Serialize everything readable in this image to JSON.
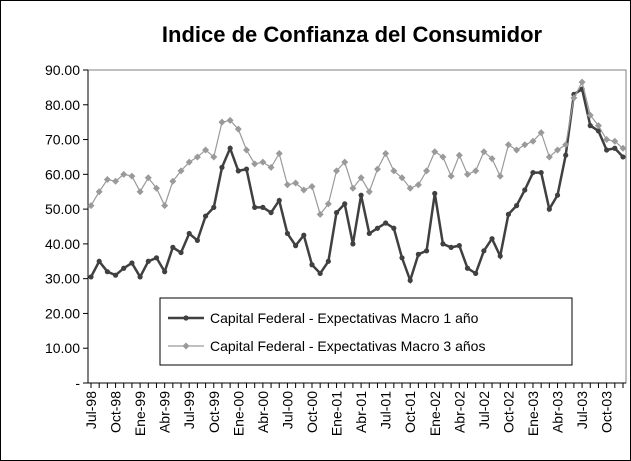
{
  "chart_data": {
    "type": "line",
    "title": "Indice de Confianza del Consumidor",
    "categories": [
      "Jul-98",
      null,
      null,
      "Oct-98",
      null,
      null,
      "Ene-99",
      null,
      null,
      "Abr-99",
      null,
      null,
      "Jul-99",
      null,
      null,
      "Oct-99",
      null,
      null,
      "Ene-00",
      null,
      null,
      "Abr-00",
      null,
      null,
      "Jul-00",
      null,
      null,
      "Oct-00",
      null,
      null,
      "Ene-01",
      null,
      null,
      "Abr-01",
      null,
      null,
      "Jul-01",
      null,
      null,
      "Oct-01",
      null,
      null,
      "Ene-02",
      null,
      null,
      "Abr-02",
      null,
      null,
      "Jul-02",
      null,
      null,
      "Oct-02",
      null,
      null,
      "Ene-03",
      null,
      null,
      "Abr-03",
      null,
      null,
      "Jul-03",
      null,
      null,
      "Oct-03",
      null,
      null
    ],
    "series": [
      {
        "name": "Capital Federal - Expectativas Macro 1 año",
        "color": "#404040",
        "marker": "circle",
        "values": [
          30.5,
          35,
          32,
          31,
          33,
          34.5,
          30.5,
          35,
          36,
          32,
          39,
          37.5,
          43,
          41,
          48,
          50.5,
          62,
          67.5,
          61,
          61.5,
          50.5,
          50.5,
          49,
          52.5,
          43,
          39.5,
          42.5,
          34,
          31.5,
          35,
          49,
          51.5,
          40,
          54,
          43,
          44.5,
          46,
          44.5,
          36,
          29.5,
          37,
          38,
          54.5,
          40,
          39,
          39.5,
          33,
          31.5,
          38,
          41.5,
          36.5,
          48.5,
          51,
          55.5,
          60.5,
          60.5,
          50,
          54,
          65.5,
          83,
          84.5,
          74,
          72.5,
          67,
          67.5,
          65
        ]
      },
      {
        "name": "Capital Federal - Expectativas Macro 3 años",
        "color": "#9a9a9a",
        "marker": "diamond",
        "values": [
          51,
          55,
          58.5,
          58,
          60,
          59.5,
          55,
          59,
          56,
          51,
          58,
          61,
          63.5,
          65,
          67,
          65,
          75,
          75.5,
          73,
          67,
          63,
          63.5,
          62,
          66,
          57,
          57.5,
          55.5,
          56.5,
          48.5,
          51.5,
          61,
          63.5,
          56,
          59,
          55,
          61.5,
          66,
          61,
          59,
          56,
          57,
          61,
          66.5,
          65,
          59.5,
          65.5,
          60,
          61,
          66.5,
          64.5,
          59.5,
          68.5,
          67,
          68.5,
          69.5,
          72,
          65,
          67,
          68.5,
          82,
          86.5,
          77,
          74,
          70,
          69.5,
          67.5
        ]
      }
    ],
    "ylim": [
      0,
      90
    ],
    "yticks": [
      {
        "value": 0,
        "label": "-"
      },
      {
        "value": 10,
        "label": "10.00"
      },
      {
        "value": 20,
        "label": "20.00"
      },
      {
        "value": 30,
        "label": "30.00"
      },
      {
        "value": 40,
        "label": "40.00"
      },
      {
        "value": 50,
        "label": "50.00"
      },
      {
        "value": 60,
        "label": "60.00"
      },
      {
        "value": 70,
        "label": "70.00"
      },
      {
        "value": 80,
        "label": "80.00"
      },
      {
        "value": 90,
        "label": "90.00"
      }
    ],
    "grid": false
  }
}
